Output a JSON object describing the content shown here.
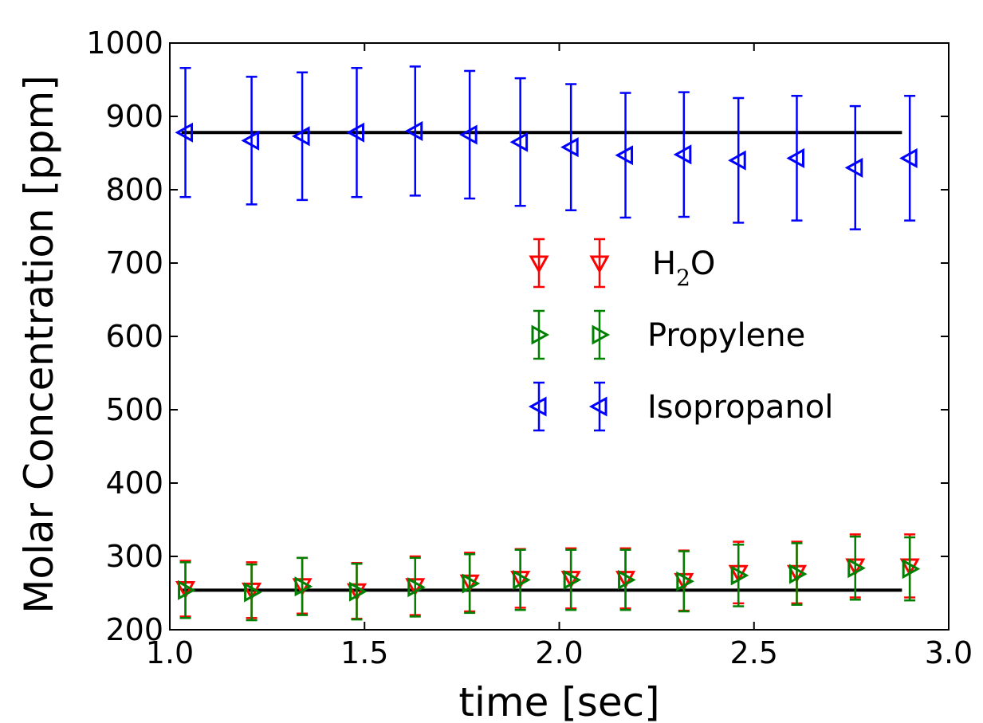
{
  "chart_data": {
    "type": "scatter",
    "title": "",
    "xlabel": "time [sec]",
    "ylabel": "Molar Concentration [ppm]",
    "xlim": [
      1.0,
      3.0
    ],
    "ylim": [
      200,
      1000
    ],
    "xticks": [
      "1.0",
      "1.5",
      "2.0",
      "2.5",
      "3.0"
    ],
    "yticks": [
      "200",
      "300",
      "400",
      "500",
      "600",
      "700",
      "800",
      "900",
      "1000"
    ],
    "grid": false,
    "legend_position": "center-right",
    "reference_lines": [
      {
        "x": [
          1.03,
          2.88
        ],
        "y": [
          878,
          878
        ],
        "color": "#000000"
      },
      {
        "x": [
          1.03,
          2.88
        ],
        "y": [
          254,
          254
        ],
        "color": "#000000"
      }
    ],
    "series": [
      {
        "name": "H",
        "name_sub": "2",
        "name_suffix": "O",
        "marker": "triangle-down",
        "color": "#ff0000",
        "x": [
          1.04,
          1.21,
          1.34,
          1.48,
          1.63,
          1.77,
          1.9,
          2.03,
          2.17,
          2.32,
          2.46,
          2.61,
          2.76,
          2.9
        ],
        "y": [
          256,
          254,
          260,
          253,
          260,
          265,
          270,
          270,
          270,
          267,
          278,
          278,
          287,
          287
        ],
        "yerr": [
          38,
          38,
          38,
          38,
          40,
          40,
          40,
          41,
          41,
          41,
          42,
          42,
          43,
          43
        ]
      },
      {
        "name": "Propylene",
        "marker": "triangle-right",
        "color": "#008000",
        "x": [
          1.04,
          1.21,
          1.34,
          1.48,
          1.63,
          1.77,
          1.9,
          2.03,
          2.17,
          2.32,
          2.46,
          2.61,
          2.76,
          2.9
        ],
        "y": [
          254,
          251,
          259,
          252,
          258,
          263,
          268,
          268,
          268,
          266,
          274,
          276,
          284,
          283
        ],
        "yerr": [
          38,
          38,
          39,
          38,
          40,
          40,
          41,
          41,
          41,
          41,
          42,
          42,
          43,
          43
        ]
      },
      {
        "name": "Isopropanol",
        "marker": "triangle-left",
        "color": "#0000ff",
        "x": [
          1.04,
          1.21,
          1.34,
          1.48,
          1.63,
          1.77,
          1.9,
          2.03,
          2.17,
          2.32,
          2.46,
          2.61,
          2.76,
          2.9
        ],
        "y": [
          878,
          867,
          873,
          878,
          880,
          875,
          865,
          858,
          847,
          848,
          840,
          843,
          830,
          843
        ],
        "yerr": [
          88,
          87,
          87,
          88,
          88,
          87,
          87,
          86,
          85,
          85,
          85,
          85,
          84,
          85
        ]
      }
    ]
  }
}
